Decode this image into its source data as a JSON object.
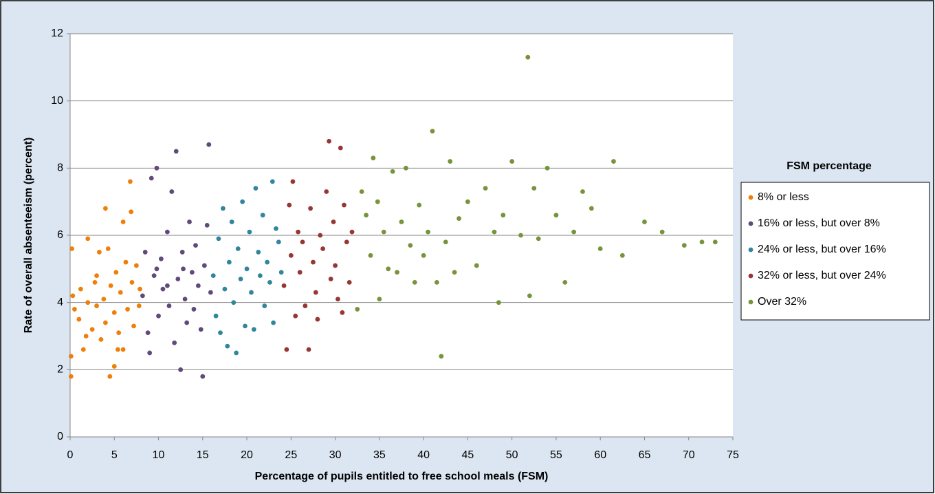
{
  "chart_data": {
    "type": "scatter",
    "x_label": "Percentage of pupils entitled to free school meals (FSM)",
    "y_label": "Rate of overall absenteeism (percent)",
    "legend_title": "FSM percentage",
    "legend_position": "right",
    "grid": true,
    "xlim": [
      0,
      75
    ],
    "xticks": [
      0,
      5,
      10,
      15,
      20,
      25,
      30,
      35,
      40,
      45,
      50,
      55,
      60,
      65,
      70,
      75
    ],
    "ylim": [
      0,
      12
    ],
    "yticks": [
      0,
      2,
      4,
      6,
      8,
      10,
      12
    ],
    "series": [
      {
        "name": "8% or less",
        "color": "#f07f09",
        "x": [
          0.2,
          0.1,
          0.1,
          0.3,
          0.5,
          1,
          1.2,
          1.5,
          2,
          2,
          2.5,
          2.8,
          3,
          3.3,
          3.5,
          3.8,
          4,
          4,
          4.3,
          4.5,
          4.6,
          5,
          5,
          5.2,
          5.5,
          5.7,
          6,
          6,
          6.3,
          6.5,
          6.8,
          6.9,
          7,
          7.2,
          7.5,
          7.8,
          7.9,
          3,
          1.8,
          5.4
        ],
        "values": [
          5.6,
          1.8,
          2.4,
          4.2,
          3.8,
          3.5,
          4.4,
          2.6,
          5.9,
          4,
          3.2,
          4.6,
          3.9,
          5.5,
          2.9,
          4.1,
          6.8,
          3.4,
          5.6,
          1.8,
          4.5,
          2.1,
          3.7,
          4.9,
          3.1,
          4.3,
          6.4,
          2.6,
          5.2,
          3.8,
          7.6,
          6.7,
          4.6,
          3.3,
          5.1,
          3.9,
          4.4,
          4.8,
          3.0,
          2.6
        ]
      },
      {
        "name": "16% or less, but over 8%",
        "color": "#604a7b",
        "x": [
          8.2,
          8.5,
          8.8,
          9,
          9.2,
          9.5,
          9.8,
          10,
          10.3,
          10.5,
          11,
          11.2,
          11.5,
          11.8,
          12,
          12.2,
          12.5,
          12.7,
          13,
          13.2,
          13.5,
          13.8,
          14,
          14.2,
          14.5,
          14.8,
          15,
          15.2,
          15.5,
          15.7,
          15.9,
          11,
          12.8,
          9.8
        ],
        "values": [
          4.2,
          5.5,
          3.1,
          2.5,
          7.7,
          4.8,
          8,
          3.6,
          5.3,
          4.4,
          6.1,
          3.9,
          7.3,
          2.8,
          8.5,
          4.7,
          2.0,
          5.5,
          4.1,
          3.4,
          6.4,
          4.9,
          3.8,
          5.7,
          4.5,
          3.2,
          1.8,
          5.1,
          6.3,
          8.7,
          4.3,
          4.5,
          5.0,
          5.0
        ]
      },
      {
        "name": "24% or less, but over 16%",
        "color": "#31859c",
        "x": [
          16.2,
          16.5,
          16.8,
          17,
          17.3,
          17.5,
          17.8,
          18,
          18.3,
          18.5,
          18.8,
          19,
          19.3,
          19.5,
          19.8,
          20,
          20.3,
          20.5,
          20.8,
          21,
          21.3,
          21.5,
          21.8,
          22,
          22.3,
          22.6,
          22.9,
          23,
          23.3,
          23.6,
          23.9
        ],
        "values": [
          4.8,
          3.6,
          5.9,
          3.1,
          6.8,
          4.4,
          2.7,
          5.2,
          6.4,
          4.0,
          2.5,
          5.6,
          4.7,
          7.0,
          3.3,
          5.0,
          6.1,
          4.3,
          3.2,
          7.4,
          5.5,
          4.8,
          6.6,
          3.9,
          5.2,
          4.6,
          7.6,
          3.4,
          6.2,
          5.8,
          4.9
        ]
      },
      {
        "name": "32% or less, but over 24%",
        "color": "#953735",
        "x": [
          24.2,
          24.5,
          24.8,
          25,
          25.2,
          25.5,
          25.8,
          26,
          26.3,
          26.6,
          27,
          27.2,
          27.5,
          27.8,
          28,
          28.3,
          28.6,
          29,
          29.3,
          29.5,
          29.8,
          30,
          30.3,
          30.6,
          30.8,
          31,
          31.3,
          31.6,
          31.9
        ],
        "values": [
          4.5,
          2.6,
          6.9,
          5.4,
          7.6,
          3.6,
          6.1,
          4.9,
          5.8,
          3.9,
          2.6,
          6.8,
          5.2,
          4.3,
          3.5,
          6.0,
          5.6,
          7.3,
          8.8,
          4.7,
          6.4,
          5.1,
          4.1,
          8.6,
          3.7,
          6.9,
          5.8,
          4.6,
          6.1
        ]
      },
      {
        "name": "Over 32%",
        "color": "#77933c",
        "x": [
          32.5,
          33,
          33.5,
          34,
          34.3,
          34.8,
          35,
          35.5,
          36,
          36.5,
          37,
          37.5,
          38,
          38.5,
          39,
          39.5,
          40,
          40.5,
          41,
          41.5,
          42,
          42.5,
          43,
          43.5,
          44,
          45,
          46,
          47,
          48,
          48.5,
          49,
          50,
          51,
          51.8,
          52,
          52.5,
          53,
          54,
          55,
          56,
          57,
          58,
          59,
          60,
          61.5,
          62.5,
          65,
          67,
          69.5,
          71.5,
          73
        ],
        "values": [
          3.8,
          7.3,
          6.6,
          5.4,
          8.3,
          7.0,
          4.1,
          6.1,
          5.0,
          7.9,
          4.9,
          6.4,
          8.0,
          5.7,
          4.6,
          6.9,
          5.4,
          6.1,
          9.1,
          4.6,
          2.4,
          5.8,
          8.2,
          4.9,
          6.5,
          7.0,
          5.1,
          7.4,
          6.1,
          4.0,
          6.6,
          8.2,
          6.0,
          11.3,
          4.2,
          7.4,
          5.9,
          8.0,
          6.6,
          4.6,
          6.1,
          7.3,
          6.8,
          5.6,
          8.2,
          5.4,
          6.4,
          6.1,
          5.7,
          5.8,
          5.8
        ]
      }
    ]
  }
}
